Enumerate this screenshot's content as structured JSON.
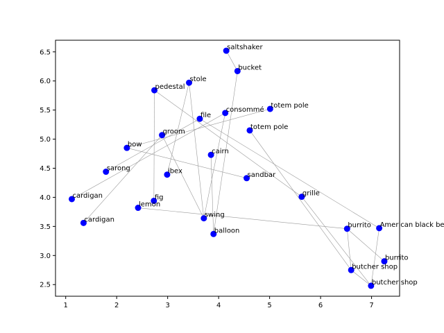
{
  "chart_data": {
    "type": "scatter",
    "title": "",
    "xlabel": "",
    "ylabel": "",
    "xlim": [
      0.8,
      7.55
    ],
    "ylim": [
      2.3,
      6.7
    ],
    "xticks": [
      1,
      2,
      3,
      4,
      5,
      6,
      7
    ],
    "yticks": [
      2.5,
      3.0,
      3.5,
      4.0,
      4.5,
      5.0,
      5.5,
      6.0,
      6.5
    ],
    "grid": false,
    "point_color": "#0000ff",
    "edge_color": "#999999",
    "points": [
      {
        "label": "saltshaker",
        "x": 4.15,
        "y": 6.52
      },
      {
        "label": "bucket",
        "x": 4.37,
        "y": 6.17
      },
      {
        "label": "stole",
        "x": 3.42,
        "y": 5.97
      },
      {
        "label": "pedestal",
        "x": 2.74,
        "y": 5.84
      },
      {
        "label": "totem pole",
        "x": 5.01,
        "y": 5.52
      },
      {
        "label": "consommé",
        "x": 4.13,
        "y": 5.45
      },
      {
        "label": "file",
        "x": 3.63,
        "y": 5.35
      },
      {
        "label": "totem pole",
        "x": 4.61,
        "y": 5.15
      },
      {
        "label": "groom",
        "x": 2.89,
        "y": 5.07
      },
      {
        "label": "bow",
        "x": 2.2,
        "y": 4.85
      },
      {
        "label": "cairn",
        "x": 3.85,
        "y": 4.73
      },
      {
        "label": "sarong",
        "x": 1.79,
        "y": 4.44
      },
      {
        "label": "ibex",
        "x": 2.99,
        "y": 4.39
      },
      {
        "label": "sandbar",
        "x": 4.55,
        "y": 4.33
      },
      {
        "label": "grille",
        "x": 5.63,
        "y": 4.01
      },
      {
        "label": "cardigan",
        "x": 1.12,
        "y": 3.97
      },
      {
        "label": "fig",
        "x": 2.73,
        "y": 3.94
      },
      {
        "label": "lemon",
        "x": 2.42,
        "y": 3.82
      },
      {
        "label": "swing",
        "x": 3.71,
        "y": 3.64
      },
      {
        "label": "cardigan",
        "x": 1.35,
        "y": 3.56
      },
      {
        "label": "burrito",
        "x": 6.52,
        "y": 3.46
      },
      {
        "label": "American black bear",
        "x": 7.15,
        "y": 3.47
      },
      {
        "label": "balloon",
        "x": 3.9,
        "y": 3.37
      },
      {
        "label": "burrito",
        "x": 7.25,
        "y": 2.9
      },
      {
        "label": "butcher shop",
        "x": 6.6,
        "y": 2.75
      },
      {
        "label": "butcher shop",
        "x": 6.99,
        "y": 2.48
      }
    ],
    "edges": [
      [
        0,
        1
      ],
      [
        1,
        22
      ],
      [
        2,
        18
      ],
      [
        2,
        12
      ],
      [
        3,
        16
      ],
      [
        3,
        14
      ],
      [
        4,
        9
      ],
      [
        5,
        18
      ],
      [
        5,
        15
      ],
      [
        6,
        11
      ],
      [
        6,
        21
      ],
      [
        7,
        24
      ],
      [
        8,
        19
      ],
      [
        8,
        18
      ],
      [
        9,
        13
      ],
      [
        10,
        22
      ],
      [
        14,
        25
      ],
      [
        17,
        20
      ],
      [
        20,
        23
      ],
      [
        20,
        24
      ],
      [
        24,
        25
      ],
      [
        25,
        21
      ]
    ]
  }
}
